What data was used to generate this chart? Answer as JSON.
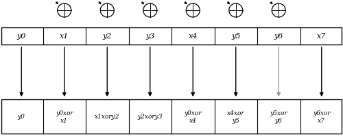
{
  "top_row_labels": [
    "y0",
    "x1",
    "y2",
    "y3",
    "x4",
    "y5",
    "y6",
    "x7"
  ],
  "bottom_row_labels": [
    "y0",
    "y0xor\nx1",
    "x1xory2",
    "y2xory3",
    "y0xor\nx4",
    "x4xor\ny5",
    "y5xor\ny6",
    "y6xor\nx7"
  ],
  "n_cells": 8,
  "bg_color": "#ffffff",
  "box_color": "#000000",
  "text_color": "#000000",
  "xor_cell_indices": [
    1,
    2,
    3,
    4,
    5,
    6
  ],
  "gray_arrow_indices": [
    6
  ],
  "fig_width": 5.0,
  "fig_height": 2.01,
  "dpi": 100
}
